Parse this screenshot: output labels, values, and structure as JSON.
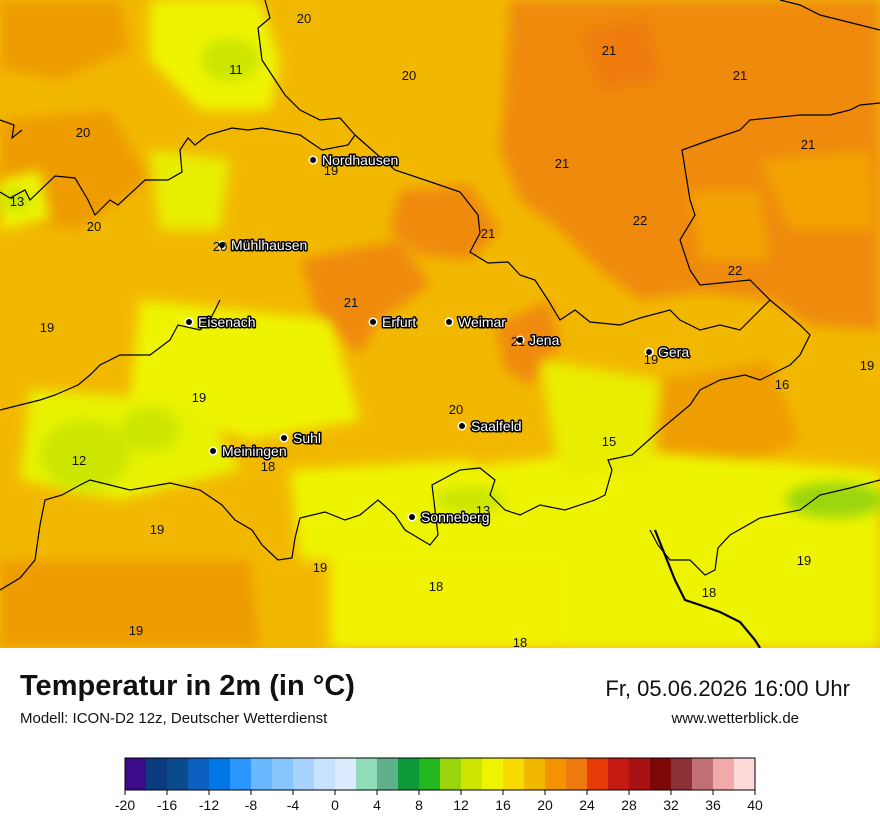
{
  "header": {
    "title": "Temperatur in 2m (in °C)",
    "model": "Modell: ICON-D2 12z, Deutscher Wetterdienst",
    "datetime": "Fr, 05.06.2026 16:00 Uhr",
    "website": "www.wetterblick.de"
  },
  "cities": [
    {
      "name": "Nordhausen"
    },
    {
      "name": "Mühlhausen"
    },
    {
      "name": "Eisenach"
    },
    {
      "name": "Erfurt"
    },
    {
      "name": "Weimar"
    },
    {
      "name": "Jena"
    },
    {
      "name": "Gera"
    },
    {
      "name": "Suhl"
    },
    {
      "name": "Meiningen"
    },
    {
      "name": "Saalfeld"
    },
    {
      "name": "Sonneberg"
    }
  ],
  "temperature_labels": [
    "20",
    "11",
    "20",
    "21",
    "21",
    "20",
    "19",
    "21",
    "13",
    "20",
    "20",
    "21",
    "22",
    "21",
    "22",
    "19",
    "21",
    "21",
    "19",
    "20",
    "19",
    "19",
    "16",
    "15",
    "12",
    "18",
    "13",
    "19",
    "19",
    "18",
    "19",
    "18",
    "19",
    "18"
  ],
  "legend": {
    "ticks": [
      "-20",
      "-16",
      "-12",
      "-8",
      "-4",
      "0",
      "4",
      "8",
      "12",
      "16",
      "20",
      "24",
      "28",
      "32",
      "36",
      "40"
    ],
    "colors": [
      "#3b0b8a",
      "#0c3a7e",
      "#0b4a8c",
      "#0a5fbf",
      "#0078e6",
      "#2b97ff",
      "#6ab8ff",
      "#86c5ff",
      "#a9d3ff",
      "#c7e2ff",
      "#dcebff",
      "#92dcb8",
      "#5fb08a",
      "#0d9a3a",
      "#22b81e",
      "#9bd50c",
      "#cce600",
      "#eef400",
      "#f7da00",
      "#f2b800",
      "#f39300",
      "#ef7a0d",
      "#e63b08",
      "#c31a12",
      "#a91215",
      "#7d0707",
      "#8b3136",
      "#c07073",
      "#f2a9a9",
      "#ffd9d9"
    ]
  }
}
